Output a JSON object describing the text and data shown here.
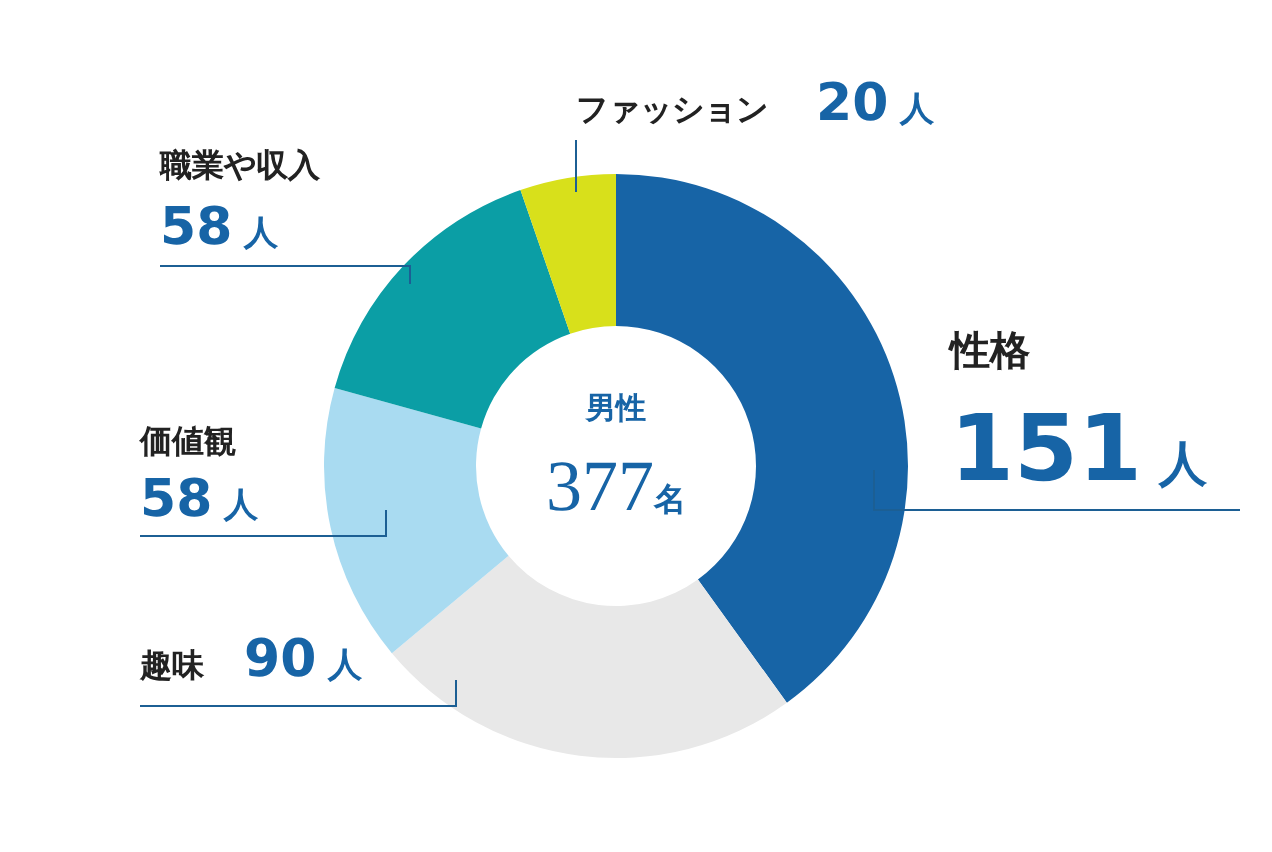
{
  "chart_data": {
    "type": "donut",
    "title": "男性",
    "annotations": [
      "377名"
    ],
    "categories": [
      "性格",
      "趣味",
      "価値観",
      "職業や収入",
      "ファッション"
    ],
    "values": [
      151,
      90,
      58,
      58,
      20
    ],
    "colors": [
      "#1764a6",
      "#e8e8e8",
      "#a9dbf1",
      "#0b9ea5",
      "#d8e01b"
    ],
    "value_labels": [
      "151 人",
      "90 人",
      "58 人",
      "58 人",
      "20 人"
    ],
    "legend": false
  }
}
